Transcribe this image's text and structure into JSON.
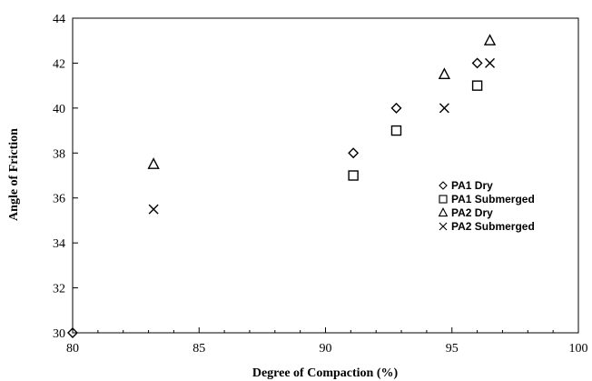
{
  "chart_data": {
    "type": "scatter",
    "title": "",
    "xlabel": "Degree of Compaction (%)",
    "ylabel": "Angle of Friction",
    "xlim": [
      80,
      100
    ],
    "ylim": [
      30,
      44
    ],
    "xticks": [
      80,
      85,
      90,
      95,
      100
    ],
    "yticks": [
      30,
      32,
      34,
      36,
      38,
      40,
      42,
      44
    ],
    "grid": false,
    "legend_position": "right",
    "series": [
      {
        "name": "PA1 Dry",
        "marker": "diamond",
        "points": [
          [
            80.0,
            30.0
          ],
          [
            91.1,
            38.0
          ],
          [
            92.8,
            40.0
          ],
          [
            96.0,
            42.0
          ]
        ]
      },
      {
        "name": "PA1 Submerged",
        "marker": "square",
        "points": [
          [
            91.1,
            37.0
          ],
          [
            92.8,
            39.0
          ],
          [
            96.0,
            41.0
          ]
        ]
      },
      {
        "name": "PA2 Dry",
        "marker": "triangle",
        "points": [
          [
            83.2,
            37.5
          ],
          [
            94.7,
            41.5
          ],
          [
            96.5,
            43.0
          ]
        ]
      },
      {
        "name": "PA2 Submerged",
        "marker": "x",
        "points": [
          [
            83.2,
            35.5
          ],
          [
            94.7,
            40.0
          ],
          [
            96.5,
            42.0
          ]
        ]
      }
    ]
  }
}
